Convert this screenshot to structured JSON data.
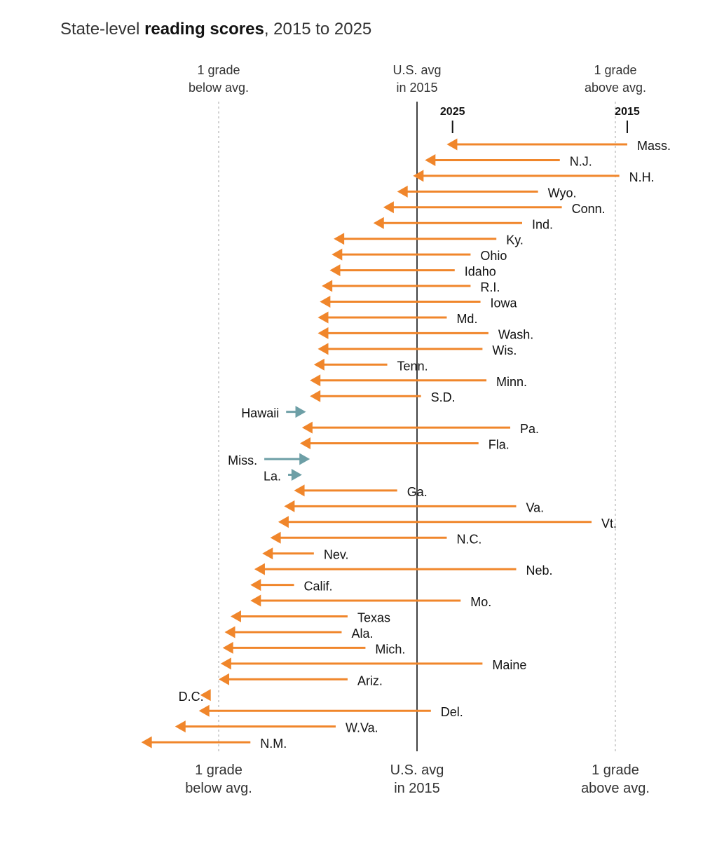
{
  "title": {
    "prefix": "State-level ",
    "bold": "reading scores",
    "suffix": ", 2015 to 2025"
  },
  "chart_data": {
    "type": "arrow",
    "x_unit": "grade levels relative to U.S. average in 2015",
    "xlim": [
      -1.4,
      1.1
    ],
    "reference_lines": [
      {
        "x": -1,
        "label_lines": [
          "1 grade",
          "below avg."
        ],
        "style": "dotted"
      },
      {
        "x": 0,
        "label_lines": [
          "U.S. avg",
          "in 2015"
        ],
        "style": "solid"
      },
      {
        "x": 1,
        "label_lines": [
          "1 grade",
          "above avg."
        ],
        "style": "dotted"
      }
    ],
    "legend": {
      "start_label": "2015",
      "end_label": "2025",
      "row": "Mass."
    },
    "colors": {
      "decline": "#f0862b",
      "improve": "#6d9fa6",
      "ref_solid": "#121212",
      "ref_dotted": "#bbbbbb"
    },
    "series": [
      {
        "state": "Mass.",
        "x2015": 1.06,
        "x2025": 0.15
      },
      {
        "state": "N.J.",
        "x2015": 0.72,
        "x2025": 0.04
      },
      {
        "state": "N.H.",
        "x2015": 1.02,
        "x2025": -0.02
      },
      {
        "state": "Wyo.",
        "x2015": 0.61,
        "x2025": -0.1
      },
      {
        "state": "Conn.",
        "x2015": 0.73,
        "x2025": -0.17
      },
      {
        "state": "Ind.",
        "x2015": 0.53,
        "x2025": -0.22
      },
      {
        "state": "Ky.",
        "x2015": 0.4,
        "x2025": -0.42
      },
      {
        "state": "Ohio",
        "x2015": 0.27,
        "x2025": -0.43
      },
      {
        "state": "Idaho",
        "x2015": 0.19,
        "x2025": -0.44
      },
      {
        "state": "R.I.",
        "x2015": 0.27,
        "x2025": -0.48
      },
      {
        "state": "Iowa",
        "x2015": 0.32,
        "x2025": -0.49
      },
      {
        "state": "Md.",
        "x2015": 0.15,
        "x2025": -0.5
      },
      {
        "state": "Wash.",
        "x2015": 0.36,
        "x2025": -0.5
      },
      {
        "state": "Wis.",
        "x2015": 0.33,
        "x2025": -0.5
      },
      {
        "state": "Tenn.",
        "x2015": -0.15,
        "x2025": -0.52
      },
      {
        "state": "Minn.",
        "x2015": 0.35,
        "x2025": -0.54
      },
      {
        "state": "S.D.",
        "x2015": 0.02,
        "x2025": -0.54
      },
      {
        "state": "Hawaii",
        "x2015": -0.66,
        "x2025": -0.56
      },
      {
        "state": "Pa.",
        "x2015": 0.47,
        "x2025": -0.58
      },
      {
        "state": "Fla.",
        "x2015": 0.31,
        "x2025": -0.59
      },
      {
        "state": "Miss.",
        "x2015": -0.77,
        "x2025": -0.54
      },
      {
        "state": "La.",
        "x2015": -0.65,
        "x2025": -0.58
      },
      {
        "state": "Ga.",
        "x2015": -0.1,
        "x2025": -0.62
      },
      {
        "state": "Va.",
        "x2015": 0.5,
        "x2025": -0.67
      },
      {
        "state": "Vt.",
        "x2015": 0.88,
        "x2025": -0.7
      },
      {
        "state": "N.C.",
        "x2015": 0.15,
        "x2025": -0.74
      },
      {
        "state": "Nev.",
        "x2015": -0.52,
        "x2025": -0.78
      },
      {
        "state": "Neb.",
        "x2015": 0.5,
        "x2025": -0.82
      },
      {
        "state": "Calif.",
        "x2015": -0.62,
        "x2025": -0.84
      },
      {
        "state": "Mo.",
        "x2015": 0.22,
        "x2025": -0.84
      },
      {
        "state": "Texas",
        "x2015": -0.35,
        "x2025": -0.94
      },
      {
        "state": "Ala.",
        "x2015": -0.38,
        "x2025": -0.97
      },
      {
        "state": "Mich.",
        "x2015": -0.26,
        "x2025": -0.98
      },
      {
        "state": "Maine",
        "x2015": 0.33,
        "x2025": -0.99
      },
      {
        "state": "Ariz.",
        "x2015": -0.35,
        "x2025": -1.0
      },
      {
        "state": "D.C.",
        "x2015": -1.04,
        "x2025": -1.04
      },
      {
        "state": "Del.",
        "x2015": 0.07,
        "x2025": -1.1
      },
      {
        "state": "W.Va.",
        "x2015": -0.41,
        "x2025": -1.22
      },
      {
        "state": "N.M.",
        "x2015": -0.84,
        "x2025": -1.39
      }
    ]
  }
}
